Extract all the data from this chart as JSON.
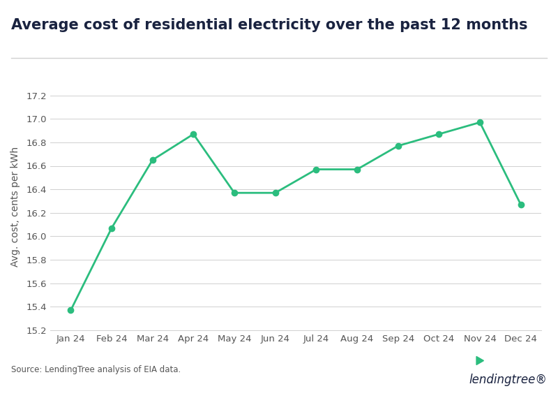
{
  "title": "Average cost of residential electricity over the past 12 months",
  "ylabel": "Avg. cost, cents per kWh",
  "source_text": "Source: LendingTree analysis of EIA data.",
  "months": [
    "Jan 24",
    "Feb 24",
    "Mar 24",
    "Apr 24",
    "May 24",
    "Jun 24",
    "Jul 24",
    "Aug 24",
    "Sep 24",
    "Oct 24",
    "Nov 24",
    "Dec 24"
  ],
  "values": [
    15.37,
    16.07,
    16.65,
    16.87,
    16.37,
    16.37,
    16.57,
    16.57,
    16.77,
    16.87,
    16.97,
    16.27
  ],
  "line_color": "#2BBD7E",
  "marker_color": "#2BBD7E",
  "marker_size": 6,
  "line_width": 2.0,
  "ylim": [
    15.2,
    17.3
  ],
  "yticks": [
    15.2,
    15.4,
    15.6,
    15.8,
    16.0,
    16.2,
    16.4,
    16.6,
    16.8,
    17.0,
    17.2
  ],
  "background_color": "#ffffff",
  "grid_color": "#d0d0d0",
  "title_color": "#1a2340",
  "axis_label_color": "#555555",
  "tick_color": "#555555",
  "title_fontsize": 15,
  "ylabel_fontsize": 10,
  "tick_fontsize": 9.5,
  "source_fontsize": 8.5,
  "separator_color": "#d0d0d0",
  "logo_text_color": "#1a2340",
  "logo_leaf_color": "#2BBD7E"
}
